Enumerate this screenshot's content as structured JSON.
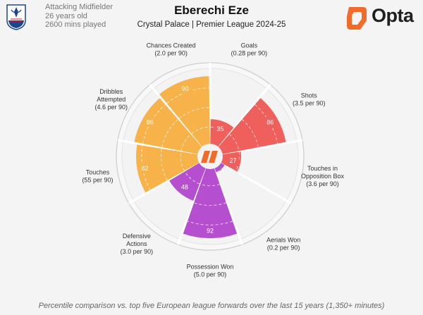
{
  "header": {
    "position": "Attacking Midfielder",
    "age": "26 years old",
    "minutes": "2600 mins played",
    "title": "Eberechi Eze",
    "subtitle": "Crystal Palace | Premier League 2024-25",
    "brand": "Opta"
  },
  "footnote": "Percentile comparison vs. top five European league forwards over the last 15 years (1,350+ minutes)",
  "chart_data": {
    "type": "polar-bar",
    "title": "Eberechi Eze",
    "rlim": [
      0,
      100
    ],
    "categories": [
      {
        "name": "Goals",
        "rate": "(0.28 per 90)",
        "value": 35,
        "color": "#ef5f5b",
        "group": "attacking"
      },
      {
        "name": "Shots",
        "rate": "(3.5 per 90)",
        "value": 86,
        "color": "#ef5f5b",
        "group": "attacking"
      },
      {
        "name": "Touches in Opposition Box",
        "rate": "(3.6 per 90)",
        "value": 27,
        "color": "#ef5f5b",
        "group": "attacking"
      },
      {
        "name": "Aerials Won",
        "rate": "(0.2 per 90)",
        "value": 9,
        "color": "#b54fcf",
        "group": "defending"
      },
      {
        "name": "Possession Won",
        "rate": "(5.0 per 90)",
        "value": 92,
        "color": "#b54fcf",
        "group": "defending"
      },
      {
        "name": "Defensive Actions",
        "rate": "(3.0 per 90)",
        "value": 48,
        "color": "#b54fcf",
        "group": "defending"
      },
      {
        "name": "Touches",
        "rate": "(55 per 90)",
        "value": 82,
        "color": "#f7b34a",
        "group": "possession"
      },
      {
        "name": "Dribbles Attempted",
        "rate": "(4.6 per 90)",
        "value": 86,
        "color": "#f7b34a",
        "group": "possession"
      },
      {
        "name": "Chances Created",
        "rate": "(2.0 per 90)",
        "value": 90,
        "color": "#f7b34a",
        "group": "possession"
      }
    ]
  },
  "colors": {
    "attacking": "#ef5f5b",
    "defending": "#b54fcf",
    "possession": "#f7b34a",
    "crest_blue": "#1b458f",
    "crest_red": "#c4122e",
    "opta_orange": "#f26b2a"
  },
  "icons": [
    "crystal-palace-crest",
    "opta-logo",
    "center-opta-icon"
  ]
}
